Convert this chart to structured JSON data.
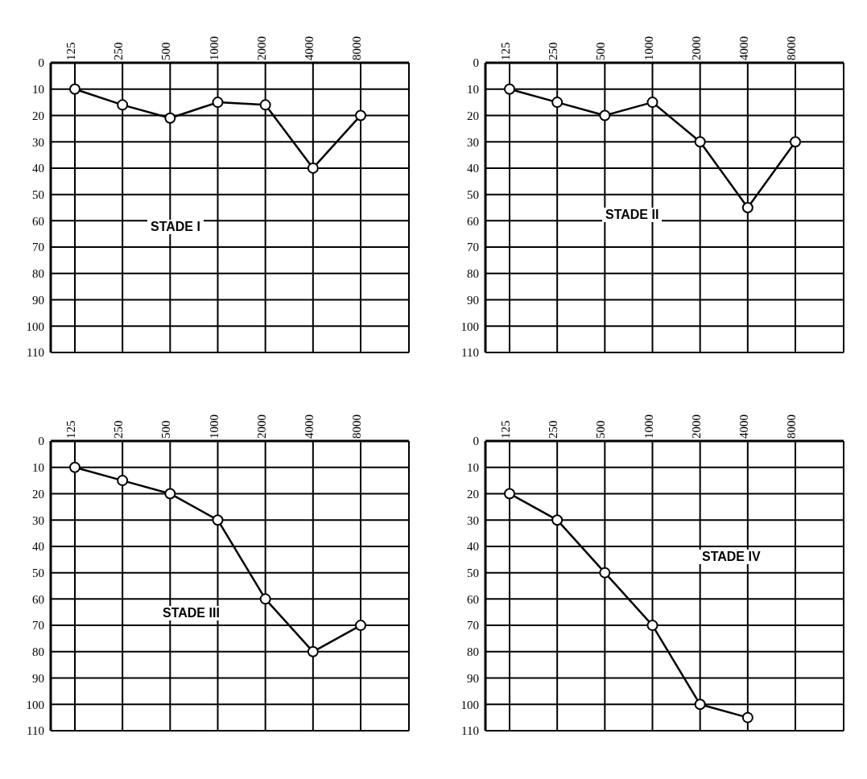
{
  "chart_data": [
    {
      "type": "line",
      "categories": [
        "125",
        "250",
        "500",
        "1000",
        "2000",
        "4000",
        "8000"
      ],
      "series": [
        {
          "color": "#000000",
          "values": [
            10,
            16,
            21,
            15,
            16,
            40,
            20
          ]
        }
      ],
      "ylim": [
        110,
        0
      ],
      "yticks": [
        0,
        10,
        20,
        30,
        40,
        50,
        60,
        70,
        80,
        90,
        100,
        110
      ],
      "grid": true,
      "marker": "circle",
      "line_style": "solid",
      "annotations": [
        "STADE I"
      ]
    },
    {
      "type": "line",
      "categories": [
        "125",
        "250",
        "500",
        "1000",
        "2000",
        "4000",
        "8000"
      ],
      "series": [
        {
          "color": "#000000",
          "values": [
            10,
            15,
            20,
            15,
            30,
            55,
            30
          ]
        }
      ],
      "ylim": [
        110,
        0
      ],
      "yticks": [
        0,
        10,
        20,
        30,
        40,
        50,
        60,
        70,
        80,
        90,
        100,
        110
      ],
      "grid": true,
      "marker": "circle",
      "line_style": "solid",
      "annotations": [
        "STADE II"
      ]
    },
    {
      "type": "line",
      "categories": [
        "125",
        "250",
        "500",
        "1000",
        "2000",
        "4000",
        "8000"
      ],
      "series": [
        {
          "color": "#000000",
          "values": [
            10,
            15,
            20,
            30,
            60,
            80,
            70
          ]
        }
      ],
      "ylim": [
        110,
        0
      ],
      "yticks": [
        0,
        10,
        20,
        30,
        40,
        50,
        60,
        70,
        80,
        90,
        100,
        110
      ],
      "grid": true,
      "marker": "circle",
      "line_style": "solid",
      "annotations": [
        "STADE III"
      ]
    },
    {
      "type": "line",
      "categories": [
        "125",
        "250",
        "500",
        "1000",
        "2000",
        "4000",
        "8000"
      ],
      "series": [
        {
          "color": "#000000",
          "values": [
            20,
            30,
            50,
            70,
            100,
            105,
            null
          ]
        }
      ],
      "ylim": [
        110,
        0
      ],
      "yticks": [
        0,
        10,
        20,
        30,
        40,
        50,
        60,
        70,
        80,
        90,
        100,
        110
      ],
      "grid": true,
      "marker": "circle",
      "line_style": "solid",
      "annotations": [
        "STADE IV"
      ]
    }
  ]
}
